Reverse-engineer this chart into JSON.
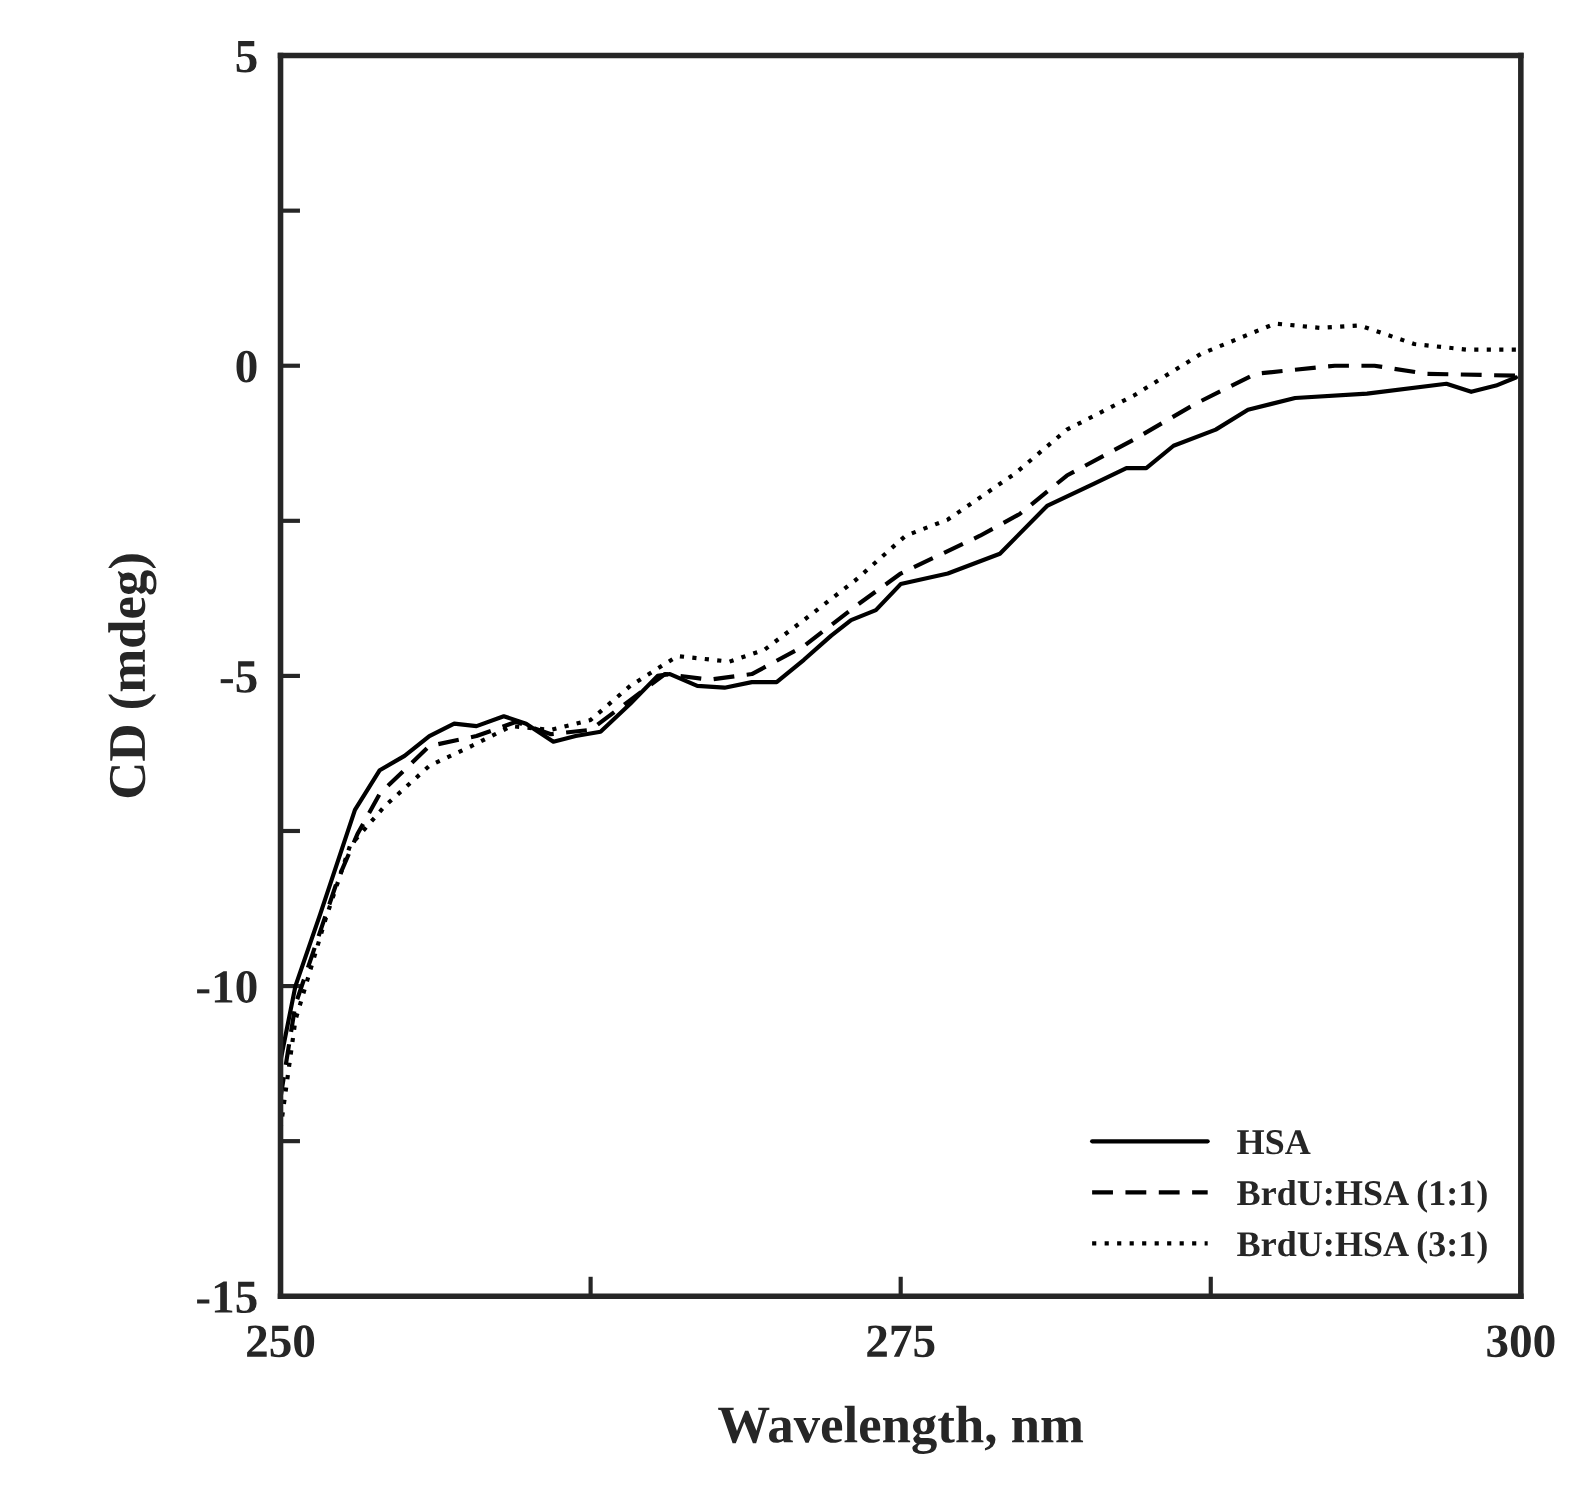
{
  "chart_data": {
    "type": "line",
    "xlabel": "Wavelength, nm",
    "ylabel": "CD (mdeg)",
    "xlim": [
      250,
      300
    ],
    "ylim": [
      -15,
      5
    ],
    "xticks": [
      250,
      {
        "value": 262.5,
        "label": null
      },
      275,
      {
        "value": 287.5,
        "label": null
      },
      300
    ],
    "yticks": [
      -15,
      {
        "value": -12.5,
        "label": null
      },
      -10,
      {
        "value": -7.5,
        "label": null
      },
      -5,
      {
        "value": -2.5,
        "label": null
      },
      0,
      {
        "value": 2.5,
        "label": null
      },
      5
    ],
    "legend": "bottom right",
    "marker": "none",
    "series": [
      {
        "name": "HSA",
        "color": "#000000",
        "line_style": "solid",
        "x": [
          250,
          250.6,
          251.6,
          253.0,
          254.0,
          255.0,
          256.0,
          257.0,
          257.9,
          259.0,
          259.9,
          261.0,
          261.9,
          262.9,
          264.1,
          265.2,
          265.7,
          266.8,
          267.9,
          269.0,
          270.0,
          271.1,
          272.2,
          273.0,
          274.0,
          275.0,
          276.9,
          279.0,
          280.9,
          282.8,
          284.1,
          284.9,
          286.0,
          287.7,
          289.0,
          290.9,
          293.8,
          297.0,
          298.0,
          299.0,
          299.8
        ],
        "values": [
          -11.2,
          -10.0,
          -8.84,
          -7.16,
          -6.52,
          -6.29,
          -5.97,
          -5.77,
          -5.81,
          -5.65,
          -5.77,
          -6.06,
          -5.97,
          -5.9,
          -5.45,
          -5.0,
          -4.97,
          -5.16,
          -5.19,
          -5.1,
          -5.1,
          -4.74,
          -4.35,
          -4.1,
          -3.94,
          -3.52,
          -3.35,
          -3.03,
          -2.26,
          -1.9,
          -1.65,
          -1.65,
          -1.29,
          -1.03,
          -0.71,
          -0.52,
          -0.45,
          -0.29,
          -0.42,
          -0.32,
          -0.19
        ]
      },
      {
        "name": "BrdU:HSA (1:1)",
        "color": "#000000",
        "line_style": "dashed",
        "x": [
          250,
          250.6,
          252.3,
          253.1,
          254.0,
          256.0,
          257.9,
          259.5,
          260.9,
          262.5,
          264.1,
          265.5,
          267.3,
          269.0,
          271.1,
          273.2,
          275.0,
          278.2,
          279.8,
          281.7,
          284.4,
          286.9,
          289.3,
          292.5,
          294.1,
          296.2,
          299.8
        ],
        "values": [
          -11.8,
          -10.3,
          -8.29,
          -7.55,
          -6.9,
          -6.13,
          -5.97,
          -5.74,
          -5.94,
          -5.87,
          -5.39,
          -4.97,
          -5.06,
          -4.97,
          -4.52,
          -3.87,
          -3.35,
          -2.74,
          -2.39,
          -1.77,
          -1.19,
          -0.61,
          -0.13,
          0.0,
          0.0,
          -0.13,
          -0.16
        ]
      },
      {
        "name": "BrdU:HSA (3:1)",
        "color": "#000000",
        "line_style": "dotted",
        "x": [
          250,
          250.6,
          251.8,
          252.8,
          254.2,
          256.0,
          257.7,
          259.3,
          260.9,
          262.5,
          264.1,
          266.0,
          268.1,
          269.5,
          271.1,
          273.2,
          275.2,
          276.9,
          279.6,
          281.7,
          284.4,
          287.1,
          290.1,
          291.9,
          293.5,
          295.7,
          297.8,
          299.8
        ],
        "values": [
          -12.3,
          -10.55,
          -8.94,
          -7.74,
          -7.1,
          -6.45,
          -6.13,
          -5.81,
          -5.87,
          -5.71,
          -5.16,
          -4.68,
          -4.77,
          -4.58,
          -4.1,
          -3.45,
          -2.74,
          -2.48,
          -1.74,
          -1.03,
          -0.48,
          0.19,
          0.68,
          0.61,
          0.65,
          0.35,
          0.26,
          0.26
        ]
      }
    ]
  }
}
